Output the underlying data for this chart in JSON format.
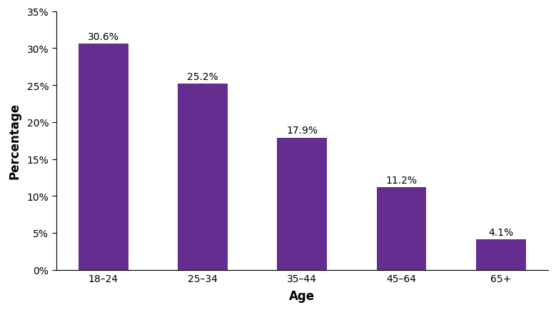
{
  "categories": [
    "18–24",
    "25–34",
    "35–44",
    "45–64",
    "65+"
  ],
  "values": [
    30.6,
    25.2,
    17.9,
    11.2,
    4.1
  ],
  "labels": [
    "30.6%",
    "25.2%",
    "17.9%",
    "11.2%",
    "4.1%"
  ],
  "bar_color": "#662d91",
  "xlabel": "Age",
  "ylabel": "Percentage",
  "ylim": [
    0,
    35
  ],
  "yticks": [
    0,
    5,
    10,
    15,
    20,
    25,
    30,
    35
  ],
  "ytick_labels": [
    "0%",
    "5%",
    "10%",
    "15%",
    "20%",
    "25%",
    "30%",
    "35%"
  ],
  "label_fontsize": 10,
  "axis_label_fontsize": 12,
  "tick_fontsize": 10,
  "bar_width": 0.5,
  "figsize": [
    7.79,
    4.35
  ],
  "dpi": 100
}
